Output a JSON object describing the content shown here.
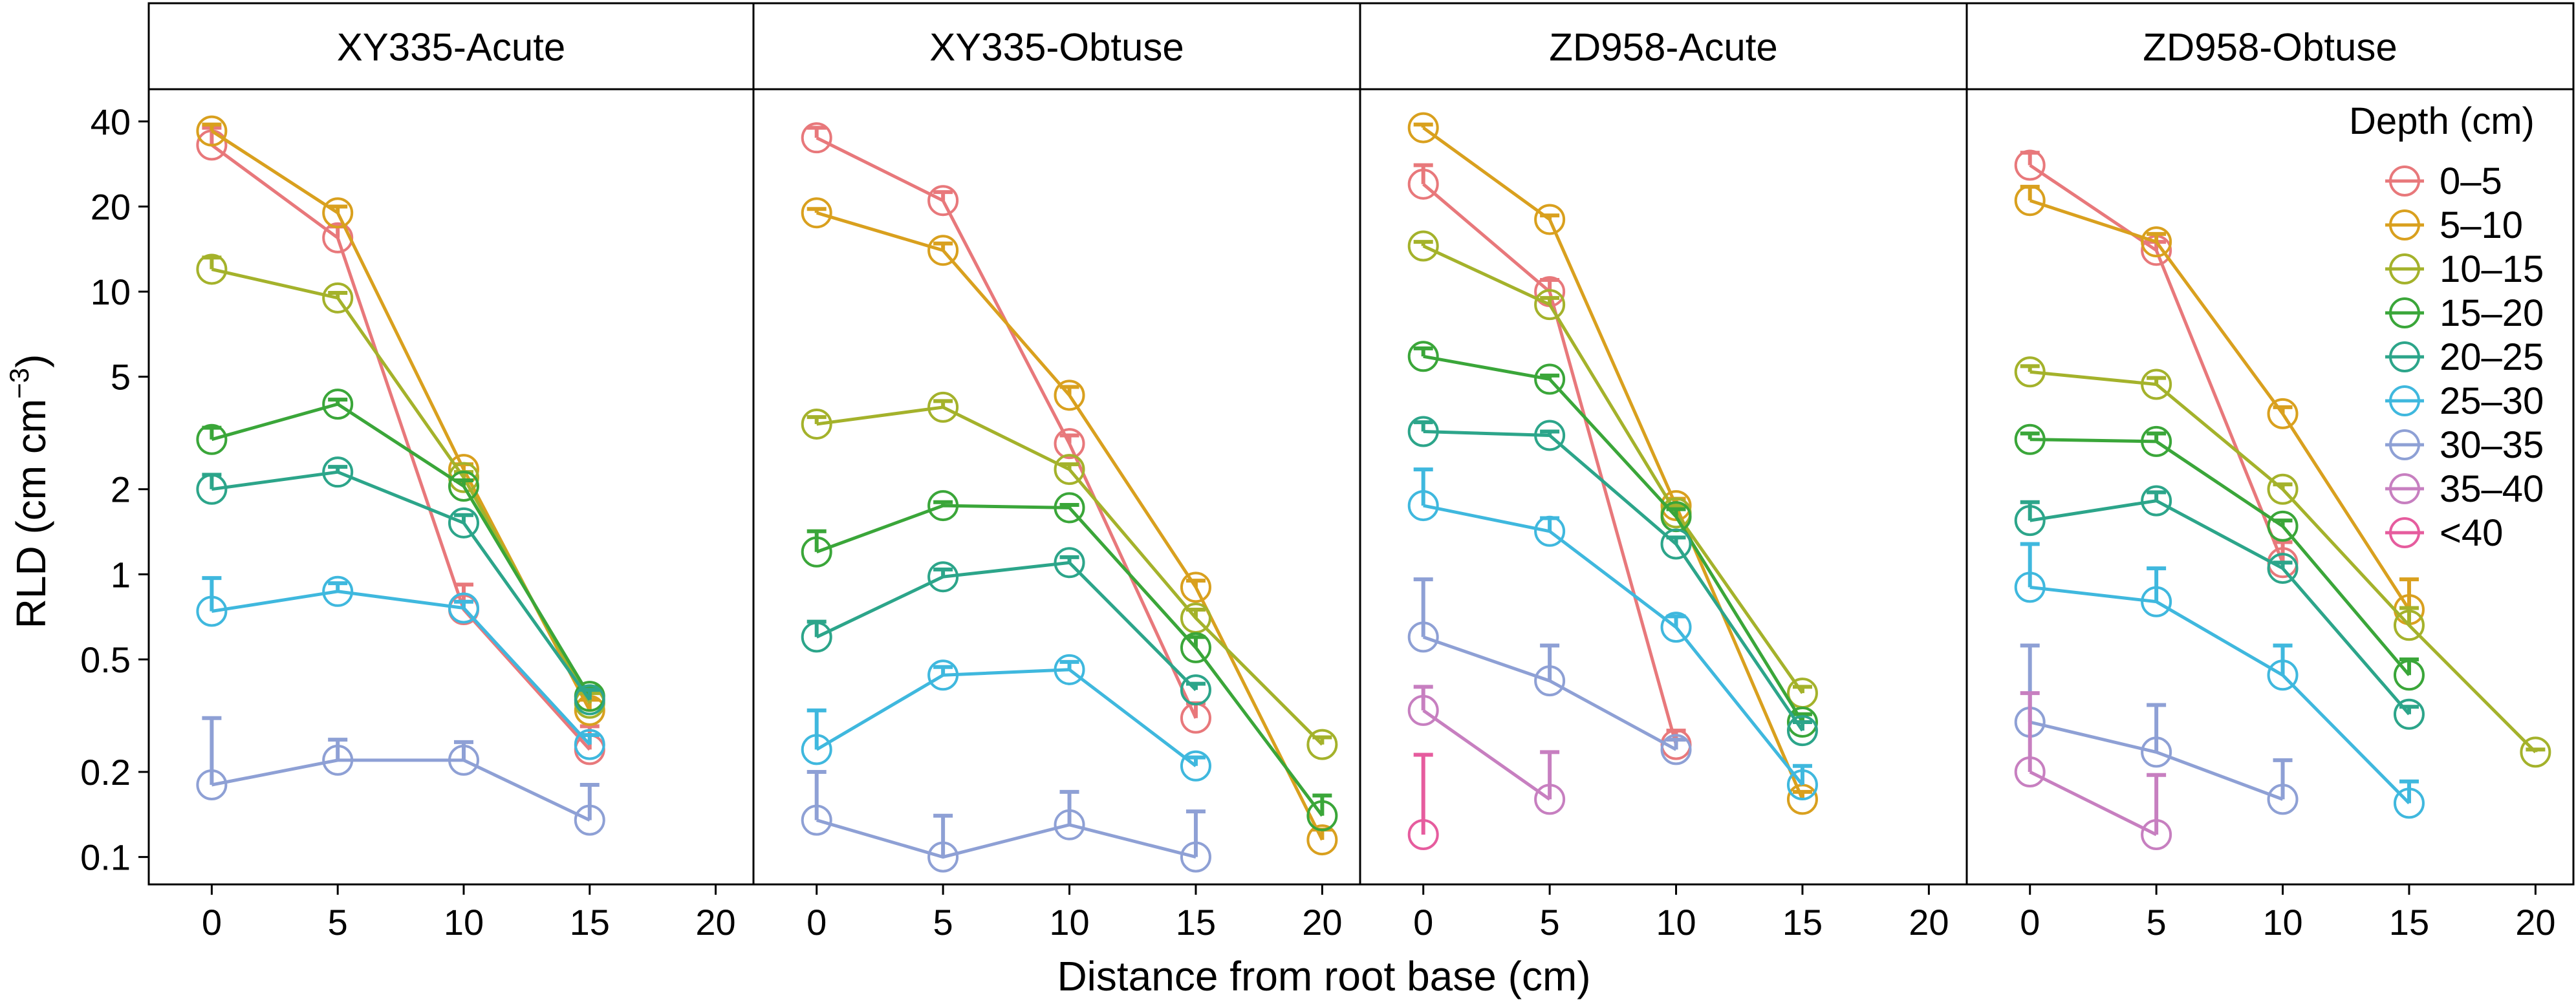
{
  "chart_data": {
    "type": "line",
    "xlabel": "Distance from root base (cm)",
    "ylabel": "RLD (cm cm",
    "ylabel_sup": "−3",
    "ylabel_end": ")",
    "yscale": "log",
    "ylim": [
      0.08,
      52
    ],
    "xlim": [
      -2.5,
      21.5
    ],
    "x_ticks": [
      0,
      5,
      10,
      15,
      20
    ],
    "x_tick_labels": [
      "0",
      "5",
      "10",
      "15",
      "20"
    ],
    "y_ticks": [
      0.1,
      0.2,
      0.5,
      1,
      2,
      5,
      10,
      20,
      40
    ],
    "y_tick_labels": [
      "0.1",
      "0.2",
      "0.5",
      "1",
      "2",
      "5",
      "10",
      "20",
      "40"
    ],
    "grid": false,
    "legend": {
      "title": "Depth (cm)",
      "placement": "top-right",
      "entries": [
        {
          "label": "0–5",
          "color": "#E8787B"
        },
        {
          "label": "5–10",
          "color": "#D9A01E"
        },
        {
          "label": "10–15",
          "color": "#A4B22B"
        },
        {
          "label": "15–20",
          "color": "#3AA639"
        },
        {
          "label": "20–25",
          "color": "#2CA58A"
        },
        {
          "label": "25–30",
          "color": "#3FB8DE"
        },
        {
          "label": "30–35",
          "color": "#8EA0D5"
        },
        {
          "label": "35–40",
          "color": "#C77FC0"
        },
        {
          "label": "<40",
          "color": "#E65C9E"
        }
      ]
    },
    "panels": [
      {
        "title": "XY335-Acute",
        "series": [
          {
            "name": "0–5",
            "points": [
              {
                "x": 0,
                "y": 33,
                "err": 38
              },
              {
                "x": 5,
                "y": 15.5,
                "err": 17
              },
              {
                "x": 10,
                "y": 0.75,
                "err": 0.92
              },
              {
                "x": 15,
                "y": 0.24,
                "err": 0.29
              }
            ]
          },
          {
            "name": "5–10",
            "points": [
              {
                "x": 0,
                "y": 37,
                "err": 39
              },
              {
                "x": 5,
                "y": 19,
                "err": 20
              },
              {
                "x": 10,
                "y": 2.35,
                "err": 2.45
              },
              {
                "x": 15,
                "y": 0.33,
                "err": 0.36
              }
            ]
          },
          {
            "name": "10–15",
            "points": [
              {
                "x": 0,
                "y": 12,
                "err": 13.2
              },
              {
                "x": 5,
                "y": 9.5,
                "err": 9.9
              },
              {
                "x": 10,
                "y": 2.2,
                "err": 2.3
              },
              {
                "x": 15,
                "y": 0.35,
                "err": 0.38
              }
            ]
          },
          {
            "name": "15–20",
            "points": [
              {
                "x": 0,
                "y": 3.0,
                "err": 3.3
              },
              {
                "x": 5,
                "y": 4.0,
                "err": 4.15
              },
              {
                "x": 10,
                "y": 2.05,
                "err": 2.15
              },
              {
                "x": 15,
                "y": 0.37,
                "err": 0.4
              }
            ]
          },
          {
            "name": "20–25",
            "points": [
              {
                "x": 0,
                "y": 2.0,
                "err": 2.25
              },
              {
                "x": 5,
                "y": 2.3,
                "err": 2.4
              },
              {
                "x": 10,
                "y": 1.52,
                "err": 1.62
              },
              {
                "x": 15,
                "y": 0.36,
                "err": 0.39
              }
            ]
          },
          {
            "name": "25–30",
            "points": [
              {
                "x": 0,
                "y": 0.74,
                "err": 0.97
              },
              {
                "x": 5,
                "y": 0.87,
                "err": 0.93
              },
              {
                "x": 10,
                "y": 0.76,
                "err": 0.8
              },
              {
                "x": 15,
                "y": 0.25,
                "err": 0.27
              }
            ]
          },
          {
            "name": "30–35",
            "points": [
              {
                "x": 0,
                "y": 0.18,
                "err": 0.31
              },
              {
                "x": 5,
                "y": 0.22,
                "err": 0.26
              },
              {
                "x": 10,
                "y": 0.22,
                "err": 0.255
              },
              {
                "x": 15,
                "y": 0.135,
                "err": 0.18
              }
            ]
          }
        ]
      },
      {
        "title": "XY335-Obtuse",
        "series": [
          {
            "name": "0–5",
            "points": [
              {
                "x": 0,
                "y": 35,
                "err": 38
              },
              {
                "x": 5,
                "y": 21,
                "err": 22.5
              },
              {
                "x": 10,
                "y": 2.9,
                "err": 3.1
              },
              {
                "x": 15,
                "y": 0.31,
                "err": 0.35
              }
            ]
          },
          {
            "name": "5–10",
            "points": [
              {
                "x": 0,
                "y": 19,
                "err": 19.6
              },
              {
                "x": 5,
                "y": 14,
                "err": 14.8
              },
              {
                "x": 10,
                "y": 4.3,
                "err": 4.6
              },
              {
                "x": 15,
                "y": 0.9,
                "err": 0.95
              },
              {
                "x": 20,
                "y": 0.115,
                "err": 0.125
              }
            ]
          },
          {
            "name": "10–15",
            "points": [
              {
                "x": 0,
                "y": 3.4,
                "err": 3.6
              },
              {
                "x": 5,
                "y": 3.9,
                "err": 4.1
              },
              {
                "x": 10,
                "y": 2.35,
                "err": 2.45
              },
              {
                "x": 15,
                "y": 0.7,
                "err": 0.75
              },
              {
                "x": 20,
                "y": 0.25,
                "err": 0.265
              }
            ]
          },
          {
            "name": "15–20",
            "points": [
              {
                "x": 0,
                "y": 1.2,
                "err": 1.42
              },
              {
                "x": 5,
                "y": 1.75,
                "err": 1.8
              },
              {
                "x": 10,
                "y": 1.72,
                "err": 1.76
              },
              {
                "x": 15,
                "y": 0.55,
                "err": 0.6
              },
              {
                "x": 20,
                "y": 0.14,
                "err": 0.165
              }
            ]
          },
          {
            "name": "20–25",
            "points": [
              {
                "x": 0,
                "y": 0.6,
                "err": 0.68
              },
              {
                "x": 5,
                "y": 0.98,
                "err": 1.04
              },
              {
                "x": 10,
                "y": 1.1,
                "err": 1.15
              },
              {
                "x": 15,
                "y": 0.39,
                "err": 0.41
              }
            ]
          },
          {
            "name": "25–30",
            "points": [
              {
                "x": 0,
                "y": 0.24,
                "err": 0.33
              },
              {
                "x": 5,
                "y": 0.44,
                "err": 0.47
              },
              {
                "x": 10,
                "y": 0.46,
                "err": 0.49
              },
              {
                "x": 15,
                "y": 0.21,
                "err": 0.225
              }
            ]
          },
          {
            "name": "30–35",
            "points": [
              {
                "x": 0,
                "y": 0.135,
                "err": 0.2
              },
              {
                "x": 5,
                "y": 0.1,
                "err": 0.14
              },
              {
                "x": 10,
                "y": 0.13,
                "err": 0.17
              },
              {
                "x": 15,
                "y": 0.1,
                "err": 0.145
              }
            ]
          }
        ]
      },
      {
        "title": "ZD958-Acute",
        "series": [
          {
            "name": "0–5",
            "points": [
              {
                "x": 0,
                "y": 24,
                "err": 28
              },
              {
                "x": 5,
                "y": 10,
                "err": 11
              },
              {
                "x": 10,
                "y": 0.25,
                "err": 0.28
              }
            ]
          },
          {
            "name": "5–10",
            "points": [
              {
                "x": 0,
                "y": 38,
                "err": 39
              },
              {
                "x": 5,
                "y": 18,
                "err": 18.6
              },
              {
                "x": 10,
                "y": 1.75,
                "err": 1.85
              },
              {
                "x": 15,
                "y": 0.16,
                "err": 0.17
              }
            ]
          },
          {
            "name": "10–15",
            "points": [
              {
                "x": 0,
                "y": 14.5,
                "err": 15
              },
              {
                "x": 5,
                "y": 9,
                "err": 9.5
              },
              {
                "x": 10,
                "y": 1.65,
                "err": 1.75
              },
              {
                "x": 15,
                "y": 0.38,
                "err": 0.4
              }
            ]
          },
          {
            "name": "15–20",
            "points": [
              {
                "x": 0,
                "y": 5.9,
                "err": 6.3
              },
              {
                "x": 5,
                "y": 4.9,
                "err": 5.05
              },
              {
                "x": 10,
                "y": 1.6,
                "err": 1.7
              },
              {
                "x": 15,
                "y": 0.3,
                "err": 0.32
              }
            ]
          },
          {
            "name": "20–25",
            "points": [
              {
                "x": 0,
                "y": 3.2,
                "err": 3.45
              },
              {
                "x": 5,
                "y": 3.1,
                "err": 3.2
              },
              {
                "x": 10,
                "y": 1.28,
                "err": 1.35
              },
              {
                "x": 15,
                "y": 0.28,
                "err": 0.3
              }
            ]
          },
          {
            "name": "25–30",
            "points": [
              {
                "x": 0,
                "y": 1.75,
                "err": 2.35
              },
              {
                "x": 5,
                "y": 1.42,
                "err": 1.58
              },
              {
                "x": 10,
                "y": 0.65,
                "err": 0.71
              },
              {
                "x": 15,
                "y": 0.18,
                "err": 0.21
              }
            ]
          },
          {
            "name": "30–35",
            "points": [
              {
                "x": 0,
                "y": 0.6,
                "err": 0.96
              },
              {
                "x": 5,
                "y": 0.42,
                "err": 0.56
              },
              {
                "x": 10,
                "y": 0.24,
                "err": 0.26
              }
            ]
          },
          {
            "name": "35–40",
            "points": [
              {
                "x": 0,
                "y": 0.33,
                "err": 0.4
              },
              {
                "x": 5,
                "y": 0.16,
                "err": 0.235
              }
            ]
          },
          {
            "name": "<40",
            "points": [
              {
                "x": 0,
                "y": 0.12,
                "err": 0.23
              }
            ]
          }
        ]
      },
      {
        "title": "ZD958-Obtuse",
        "series": [
          {
            "name": "0–5",
            "points": [
              {
                "x": 0,
                "y": 28,
                "err": 31
              },
              {
                "x": 5,
                "y": 14,
                "err": 15
              },
              {
                "x": 10,
                "y": 1.1,
                "err": 1.3
              }
            ]
          },
          {
            "name": "5–10",
            "points": [
              {
                "x": 0,
                "y": 21,
                "err": 23.5
              },
              {
                "x": 5,
                "y": 15,
                "err": 16
              },
              {
                "x": 10,
                "y": 3.7,
                "err": 3.9
              },
              {
                "x": 15,
                "y": 0.75,
                "err": 0.96
              }
            ]
          },
          {
            "name": "10–15",
            "points": [
              {
                "x": 0,
                "y": 5.2,
                "err": 5.45
              },
              {
                "x": 5,
                "y": 4.7,
                "err": 4.95
              },
              {
                "x": 10,
                "y": 2.0,
                "err": 2.08
              },
              {
                "x": 15,
                "y": 0.66,
                "err": 0.76
              },
              {
                "x": 20,
                "y": 0.235,
                "err": 0.24
              }
            ]
          },
          {
            "name": "15–20",
            "points": [
              {
                "x": 0,
                "y": 3.0,
                "err": 3.15
              },
              {
                "x": 5,
                "y": 2.95,
                "err": 3.15
              },
              {
                "x": 10,
                "y": 1.48,
                "err": 1.55
              },
              {
                "x": 15,
                "y": 0.44,
                "err": 0.5
              }
            ]
          },
          {
            "name": "20–25",
            "points": [
              {
                "x": 0,
                "y": 1.55,
                "err": 1.8
              },
              {
                "x": 5,
                "y": 1.82,
                "err": 1.95
              },
              {
                "x": 10,
                "y": 1.05,
                "err": 1.1
              },
              {
                "x": 15,
                "y": 0.32,
                "err": 0.34
              }
            ]
          },
          {
            "name": "25–30",
            "points": [
              {
                "x": 0,
                "y": 0.9,
                "err": 1.28
              },
              {
                "x": 5,
                "y": 0.8,
                "err": 1.05
              },
              {
                "x": 10,
                "y": 0.44,
                "err": 0.56
              },
              {
                "x": 15,
                "y": 0.155,
                "err": 0.185
              }
            ]
          },
          {
            "name": "30–35",
            "points": [
              {
                "x": 0,
                "y": 0.3,
                "err": 0.56
              },
              {
                "x": 5,
                "y": 0.235,
                "err": 0.345
              },
              {
                "x": 10,
                "y": 0.16,
                "err": 0.22
              }
            ]
          },
          {
            "name": "35–40",
            "points": [
              {
                "x": 0,
                "y": 0.2,
                "err": 0.38
              },
              {
                "x": 5,
                "y": 0.12,
                "err": 0.195
              }
            ]
          }
        ]
      }
    ]
  }
}
